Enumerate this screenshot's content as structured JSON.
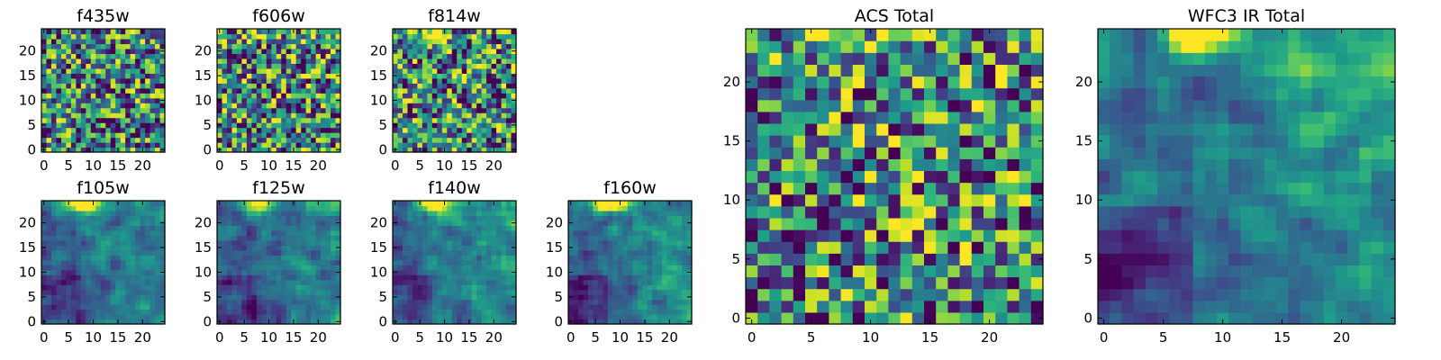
{
  "figure": {
    "colormap": "viridis",
    "background": "#ffffff"
  },
  "chart_data": [
    {
      "type": "heatmap",
      "title": "f435w",
      "grid_size": 25,
      "xlim": [
        -0.5,
        24.5
      ],
      "ylim": [
        -0.5,
        24.5
      ],
      "xticks": [
        0,
        5,
        10,
        15,
        20
      ],
      "yticks": [
        0,
        5,
        10,
        15,
        20
      ],
      "xtick_labels": [
        "0",
        "5",
        "10",
        "15",
        "20"
      ],
      "ytick_labels": [
        "0",
        "5",
        "10",
        "15",
        "20"
      ],
      "pattern": "noise",
      "gradient": 0.0,
      "hotspot": {
        "x": 7,
        "y": 24,
        "strength": 0.0
      }
    },
    {
      "type": "heatmap",
      "title": "f606w",
      "grid_size": 25,
      "xlim": [
        -0.5,
        24.5
      ],
      "ylim": [
        -0.5,
        24.5
      ],
      "xticks": [
        0,
        5,
        10,
        15,
        20
      ],
      "yticks": [
        0,
        5,
        10,
        15,
        20
      ],
      "xtick_labels": [
        "0",
        "5",
        "10",
        "15",
        "20"
      ],
      "ytick_labels": [
        "0",
        "5",
        "10",
        "15",
        "20"
      ],
      "pattern": "noise",
      "gradient": 0.1,
      "hotspot": {
        "x": 7,
        "y": 24,
        "strength": 0.35
      }
    },
    {
      "type": "heatmap",
      "title": "f814w",
      "grid_size": 25,
      "xlim": [
        -0.5,
        24.5
      ],
      "ylim": [
        -0.5,
        24.5
      ],
      "xticks": [
        0,
        5,
        10,
        15,
        20
      ],
      "yticks": [
        0,
        5,
        10,
        15,
        20
      ],
      "xtick_labels": [
        "0",
        "5",
        "10",
        "15",
        "20"
      ],
      "ytick_labels": [
        "0",
        "5",
        "10",
        "15",
        "20"
      ],
      "pattern": "noise",
      "gradient": 0.15,
      "hotspot": {
        "x": 7,
        "y": 24,
        "strength": 0.5
      }
    },
    {
      "type": "heatmap",
      "title": "f105w",
      "grid_size": 25,
      "xlim": [
        -0.5,
        24.5
      ],
      "ylim": [
        -0.5,
        24.5
      ],
      "xticks": [
        0,
        5,
        10,
        15,
        20
      ],
      "yticks": [
        0,
        5,
        10,
        15,
        20
      ],
      "xtick_labels": [
        "0",
        "5",
        "10",
        "15",
        "20"
      ],
      "ytick_labels": [
        "0",
        "5",
        "10",
        "15",
        "20"
      ],
      "pattern": "smooth",
      "gradient": 0.3,
      "hotspot": {
        "x": 8,
        "y": 24,
        "strength": 0.8
      }
    },
    {
      "type": "heatmap",
      "title": "f125w",
      "grid_size": 25,
      "xlim": [
        -0.5,
        24.5
      ],
      "ylim": [
        -0.5,
        24.5
      ],
      "xticks": [
        0,
        5,
        10,
        15,
        20
      ],
      "yticks": [
        0,
        5,
        10,
        15,
        20
      ],
      "xtick_labels": [
        "0",
        "5",
        "10",
        "15",
        "20"
      ],
      "ytick_labels": [
        "0",
        "5",
        "10",
        "15",
        "20"
      ],
      "pattern": "smooth",
      "gradient": 0.3,
      "hotspot": {
        "x": 8,
        "y": 24,
        "strength": 0.8
      }
    },
    {
      "type": "heatmap",
      "title": "f140w",
      "grid_size": 25,
      "xlim": [
        -0.5,
        24.5
      ],
      "ylim": [
        -0.5,
        24.5
      ],
      "xticks": [
        0,
        5,
        10,
        15,
        20
      ],
      "yticks": [
        0,
        5,
        10,
        15,
        20
      ],
      "xtick_labels": [
        "0",
        "5",
        "10",
        "15",
        "20"
      ],
      "ytick_labels": [
        "0",
        "5",
        "10",
        "15",
        "20"
      ],
      "pattern": "smooth",
      "gradient": 0.35,
      "hotspot": {
        "x": 8,
        "y": 24,
        "strength": 0.85
      }
    },
    {
      "type": "heatmap",
      "title": "f160w",
      "grid_size": 25,
      "xlim": [
        -0.5,
        24.5
      ],
      "ylim": [
        -0.5,
        24.5
      ],
      "xticks": [
        0,
        5,
        10,
        15,
        20
      ],
      "yticks": [
        0,
        5,
        10,
        15,
        20
      ],
      "xtick_labels": [
        "0",
        "5",
        "10",
        "15",
        "20"
      ],
      "ytick_labels": [
        "0",
        "5",
        "10",
        "15",
        "20"
      ],
      "pattern": "smooth",
      "gradient": 0.4,
      "hotspot": {
        "x": 8,
        "y": 24,
        "strength": 0.9
      }
    },
    {
      "type": "heatmap",
      "title": "ACS Total",
      "grid_size": 25,
      "xlim": [
        -0.5,
        24.5
      ],
      "ylim": [
        -0.5,
        24.5
      ],
      "xticks": [
        0,
        5,
        10,
        15,
        20
      ],
      "yticks": [
        0,
        5,
        10,
        15,
        20
      ],
      "xtick_labels": [
        "0",
        "5",
        "10",
        "15",
        "20"
      ],
      "ytick_labels": [
        "0",
        "5",
        "10",
        "15",
        "20"
      ],
      "pattern": "noise",
      "gradient": 0.15,
      "hotspot": {
        "x": 7,
        "y": 24,
        "strength": 0.5
      }
    },
    {
      "type": "heatmap",
      "title": "WFC3 IR Total",
      "grid_size": 25,
      "xlim": [
        -0.5,
        24.5
      ],
      "ylim": [
        -0.5,
        24.5
      ],
      "xticks": [
        0,
        5,
        10,
        15,
        20
      ],
      "yticks": [
        0,
        5,
        10,
        15,
        20
      ],
      "xtick_labels": [
        "0",
        "5",
        "10",
        "15",
        "20"
      ],
      "ytick_labels": [
        "0",
        "5",
        "10",
        "15",
        "20"
      ],
      "pattern": "smooth",
      "gradient": 0.45,
      "hotspot": {
        "x": 8,
        "y": 24,
        "strength": 0.95
      }
    }
  ]
}
